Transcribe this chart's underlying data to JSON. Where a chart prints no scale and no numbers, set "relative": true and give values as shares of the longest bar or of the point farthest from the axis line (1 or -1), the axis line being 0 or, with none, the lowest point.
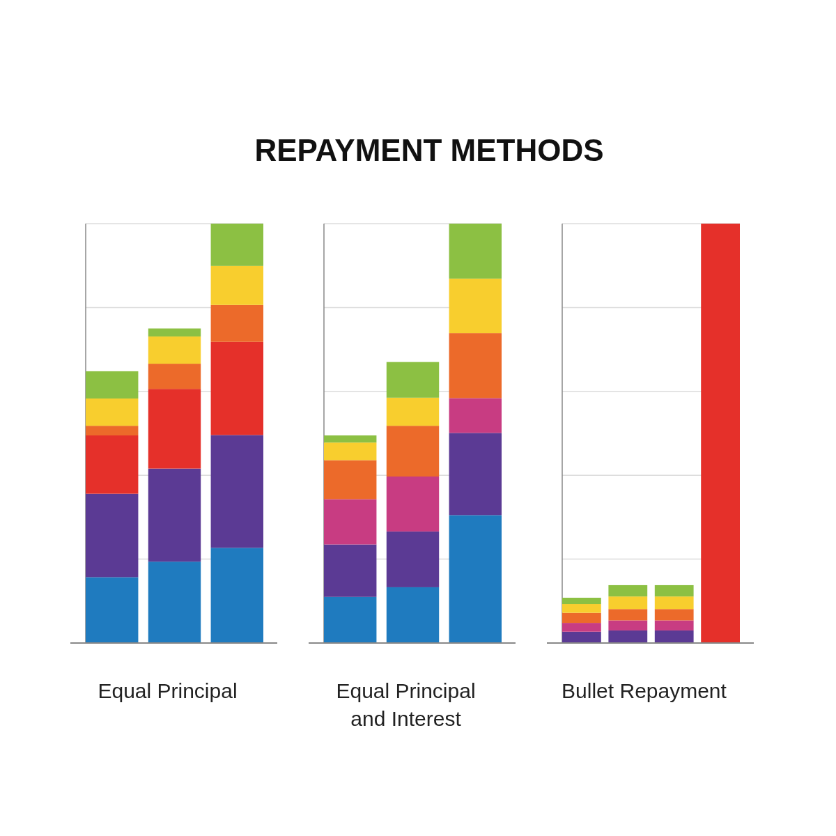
{
  "chart_data": [
    {
      "type": "bar",
      "xlabel": "Equal Principal",
      "categories": [
        null,
        null,
        null
      ],
      "stacked": true,
      "relative": true,
      "grid": true,
      "series": [
        {
          "color": "#1f7bbf",
          "values": [
            0.157,
            0.194,
            0.227
          ]
        },
        {
          "color": "#5b3a94",
          "values": [
            0.199,
            0.222,
            0.269
          ]
        },
        {
          "color": "#e5302a",
          "values": [
            0.139,
            0.19,
            0.222
          ]
        },
        {
          "color": "#ec6a2a",
          "values": [
            0.023,
            0.06,
            0.088
          ]
        },
        {
          "color": "#f8ce2e",
          "values": [
            0.065,
            0.065,
            0.093
          ]
        },
        {
          "color": "#8cc043",
          "values": [
            0.065,
            0.019,
            0.101
          ]
        }
      ]
    },
    {
      "type": "bar",
      "title": "REPAYMENT METHODS",
      "xlabel": "Equal Principal and Interest",
      "categories": [
        null,
        null,
        null
      ],
      "stacked": true,
      "relative": true,
      "grid": true,
      "series": [
        {
          "color": "#1f7bbf",
          "values": [
            0.11,
            0.133,
            0.305
          ]
        },
        {
          "color": "#5b3a94",
          "values": [
            0.125,
            0.133,
            0.196
          ]
        },
        {
          "color": "#c83c82",
          "values": [
            0.108,
            0.131,
            0.083
          ]
        },
        {
          "color": "#ec6a2a",
          "values": [
            0.093,
            0.121,
            0.155
          ]
        },
        {
          "color": "#f8ce2e",
          "values": [
            0.042,
            0.067,
            0.13
          ]
        },
        {
          "color": "#8cc043",
          "values": [
            0.017,
            0.085,
            0.131
          ]
        }
      ]
    },
    {
      "type": "bar",
      "xlabel": "Bullet Repayment",
      "categories": [
        null,
        null,
        null,
        null
      ],
      "stacked": true,
      "relative": true,
      "grid": true,
      "series": [
        {
          "color": "#5b3a94",
          "values": [
            0.027,
            0.03,
            0.03,
            null
          ]
        },
        {
          "color": "#c83c82",
          "values": [
            0.021,
            0.024,
            0.024,
            null
          ]
        },
        {
          "color": "#ec6a2a",
          "values": [
            0.024,
            0.027,
            0.027,
            null
          ]
        },
        {
          "color": "#f8ce2e",
          "values": [
            0.021,
            0.03,
            0.03,
            null
          ]
        },
        {
          "color": "#8cc043",
          "values": [
            0.015,
            0.027,
            0.027,
            null
          ]
        },
        {
          "color": "#e5302a",
          "values": [
            null,
            null,
            null,
            1
          ]
        }
      ]
    }
  ]
}
